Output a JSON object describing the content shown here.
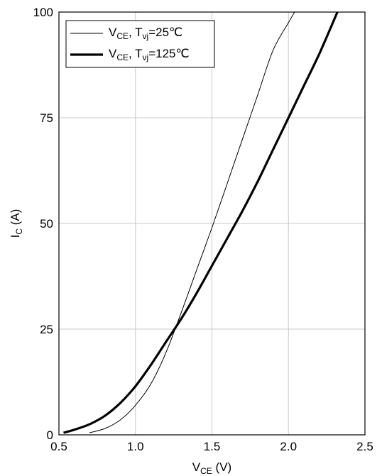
{
  "chart_data": {
    "type": "line",
    "title": "",
    "xlabel": {
      "main": "V",
      "sub": "CE",
      "unit": " (V)"
    },
    "ylabel": {
      "main": "I",
      "sub": "C",
      "unit": " (A)"
    },
    "xlim": [
      0.5,
      2.5
    ],
    "ylim": [
      0,
      100
    ],
    "xticks": [
      "0.5",
      "1.0",
      "1.5",
      "2.0",
      "2.5"
    ],
    "yticks": [
      "0",
      "25",
      "50",
      "75",
      "100"
    ],
    "grid": true,
    "legend_position": "top-left",
    "series": [
      {
        "name": "VCE, Tvj=25℃",
        "legend": {
          "v": "V",
          "vsub": "CE",
          "sep": ", ",
          "t": "T",
          "tsub": "vj",
          "rest": "=25℃"
        },
        "line_weight": "thin",
        "color": "#000000",
        "x": [
          0.7,
          0.8,
          0.9,
          1.0,
          1.1,
          1.2,
          1.3,
          1.4,
          1.5,
          1.6,
          1.7,
          1.8,
          1.9,
          2.0,
          2.04
        ],
        "y": [
          0.5,
          1.5,
          3.5,
          7.0,
          12.0,
          19.5,
          29.0,
          39.0,
          49.0,
          59.5,
          70.0,
          80.5,
          91.0,
          97.5,
          100
        ]
      },
      {
        "name": "VCE, Tvj=125℃",
        "legend": {
          "v": "V",
          "vsub": "CE",
          "sep": ", ",
          "t": "T",
          "tsub": "vj",
          "rest": "=125℃"
        },
        "line_weight": "thick",
        "color": "#000000",
        "x": [
          0.53,
          0.6,
          0.7,
          0.8,
          0.9,
          1.0,
          1.1,
          1.2,
          1.3,
          1.4,
          1.5,
          1.6,
          1.7,
          1.8,
          1.9,
          2.0,
          2.1,
          2.2,
          2.32
        ],
        "y": [
          0.5,
          1.2,
          2.5,
          4.5,
          7.5,
          11.5,
          16.5,
          22.0,
          27.5,
          33.5,
          40.0,
          46.5,
          53.0,
          60.0,
          67.5,
          75.0,
          82.5,
          90.0,
          100
        ]
      }
    ]
  }
}
